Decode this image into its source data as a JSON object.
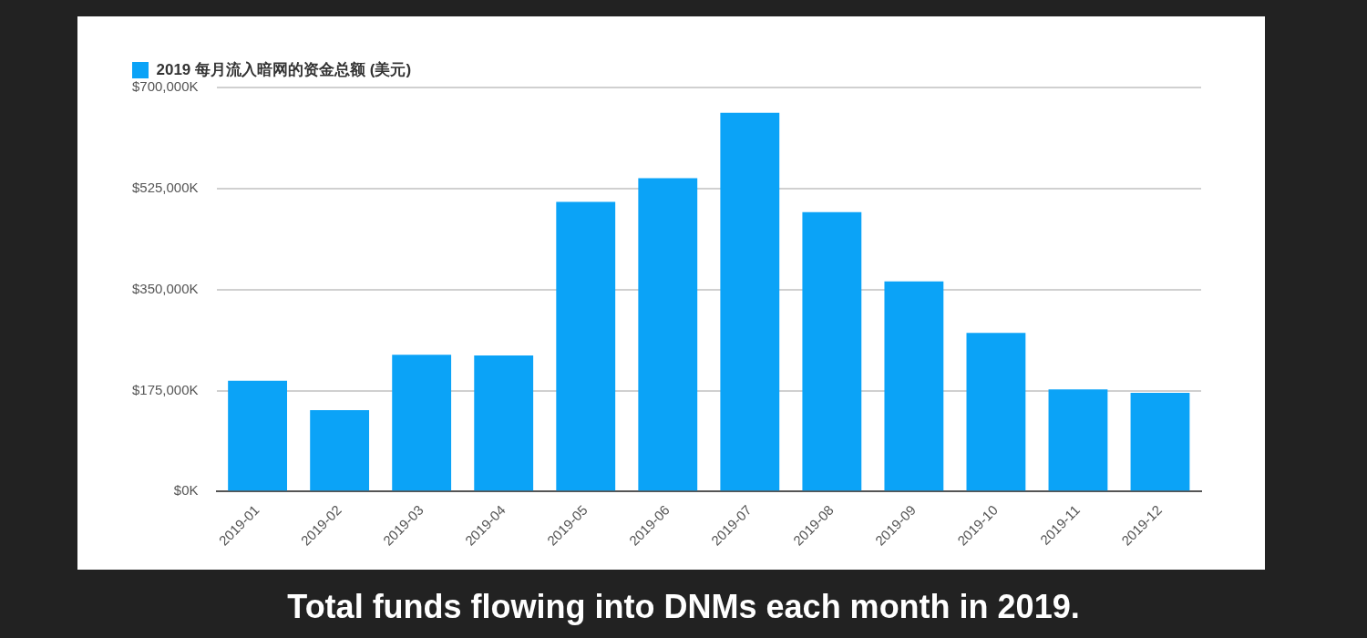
{
  "chart_data": {
    "type": "bar",
    "categories": [
      "2019-01",
      "2019-02",
      "2019-03",
      "2019-04",
      "2019-05",
      "2019-06",
      "2019-07",
      "2019-08",
      "2019-09",
      "2019-10",
      "2019-11",
      "2019-12"
    ],
    "series": [
      {
        "name": "2019 每月流入暗网的资金总额 (美元)",
        "color": "#0ba3f7",
        "values": [
          192000,
          141000,
          237000,
          236000,
          502000,
          543000,
          656000,
          484000,
          364000,
          275000,
          177000,
          171000
        ]
      }
    ],
    "ylim": [
      0,
      700000
    ],
    "yticks": [
      {
        "value": 0,
        "label": "$0K"
      },
      {
        "value": 175000,
        "label": "$175,000K"
      },
      {
        "value": 350000,
        "label": "$350,000K"
      },
      {
        "value": 525000,
        "label": "$525,000K"
      },
      {
        "value": 700000,
        "label": "$700,000K"
      }
    ],
    "grid": "y",
    "legend": "top left",
    "annotations": [
      "Total funds flowing into DNMs each month in 2019."
    ]
  }
}
